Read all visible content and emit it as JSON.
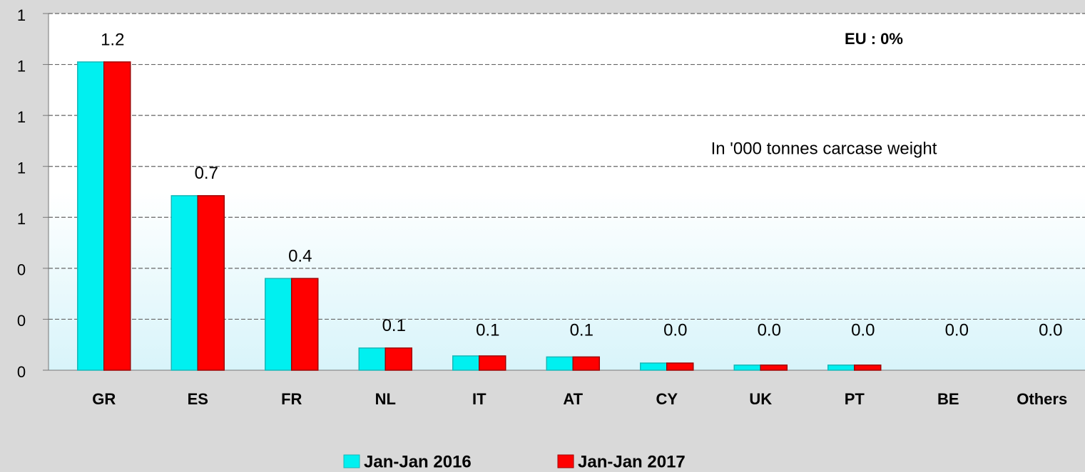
{
  "chart_data": {
    "type": "bar",
    "annotations": [
      "EU :  0%",
      "In '000 tonnes carcase weight"
    ],
    "categories": [
      "GR",
      "ES",
      "FR",
      "NL",
      "IT",
      "AT",
      "CY",
      "UK",
      "PT",
      "BE",
      "Others"
    ],
    "series": [
      {
        "name": "Jan-Jan 2016",
        "color": "#00f0f0",
        "values": [
          1.21,
          0.685,
          0.36,
          0.087,
          0.056,
          0.052,
          0.028,
          0.02,
          0.02,
          0,
          0
        ]
      },
      {
        "name": "Jan-Jan 2017",
        "color": "#ff0000",
        "values": [
          1.21,
          0.685,
          0.36,
          0.087,
          0.056,
          0.052,
          0.028,
          0.02,
          0.02,
          0,
          0
        ],
        "value_labels": [
          "1.2",
          "0.7",
          "0.4",
          "0.1",
          "0.1",
          "0.1",
          "0.0",
          "0.0",
          "0.0",
          "0.0",
          "0.0"
        ]
      }
    ],
    "ylim": [
      0,
      1.4
    ],
    "yticks": [
      {
        "value": 0,
        "label": "0"
      },
      {
        "value": 0.2,
        "label": "0"
      },
      {
        "value": 0.4,
        "label": "0"
      },
      {
        "value": 0.6,
        "label": "1"
      },
      {
        "value": 0.8,
        "label": "1"
      },
      {
        "value": 1.0,
        "label": "1"
      },
      {
        "value": 1.2,
        "label": "1"
      },
      {
        "value": 1.4,
        "label": "1"
      }
    ],
    "grid": true,
    "legend": "bottom"
  }
}
